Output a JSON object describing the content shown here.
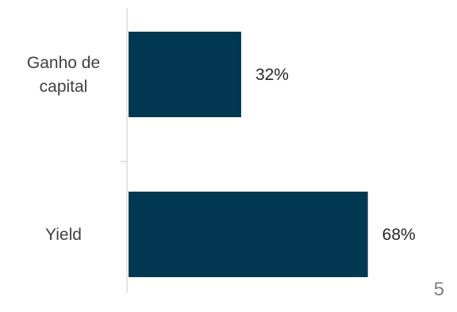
{
  "page_number": "5",
  "colors": {
    "bar": "#023852",
    "axis": "#d9d9d9",
    "label": "#404040",
    "page_number": "#7f7f7f"
  },
  "chart_data": {
    "type": "bar",
    "orientation": "horizontal",
    "categories": [
      [
        "Ganho de",
        "capital"
      ],
      [
        "Yield"
      ]
    ],
    "values": [
      32,
      68
    ],
    "data_labels": [
      "32%",
      "68%"
    ],
    "unit": "%",
    "xlim": [
      0,
      78
    ],
    "grid": false,
    "legend": "none"
  }
}
